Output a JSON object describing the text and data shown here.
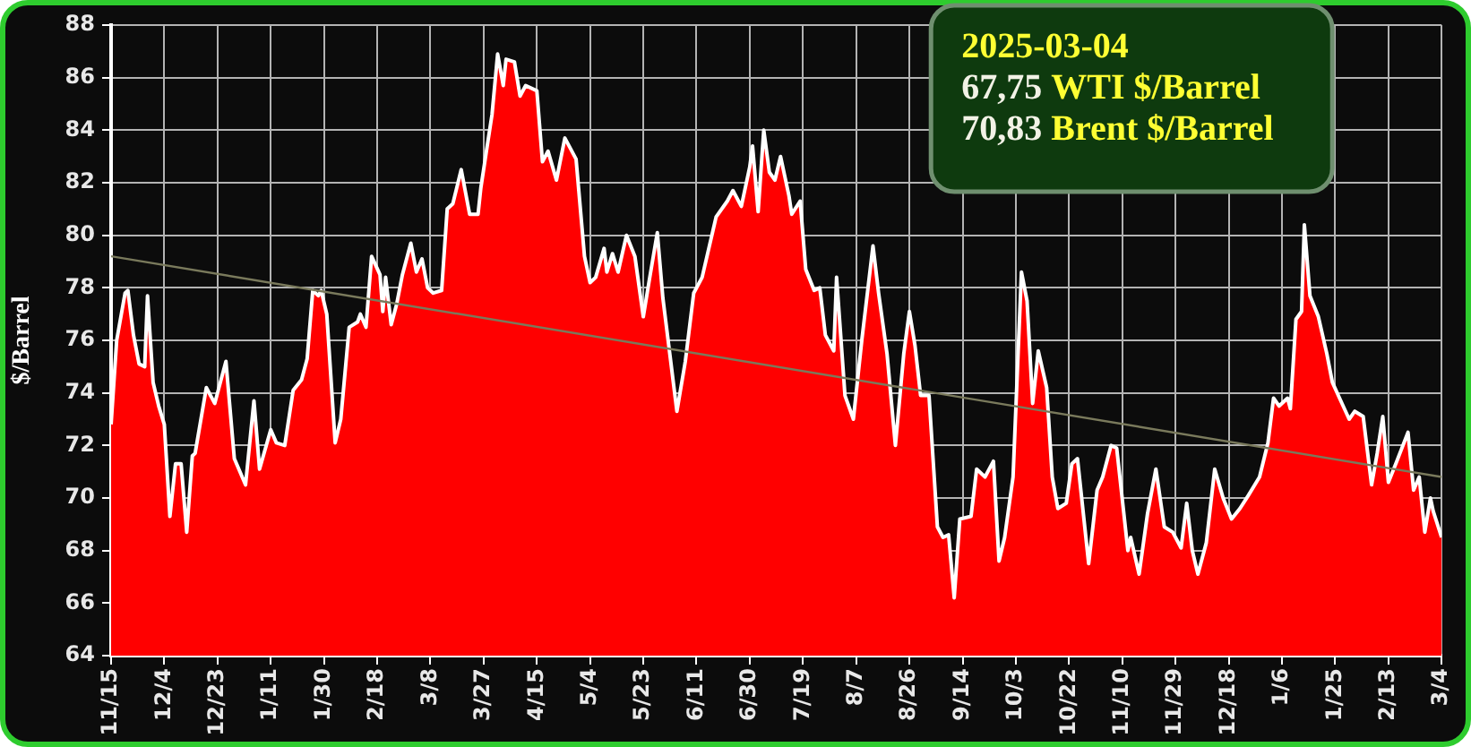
{
  "chart_data": {
    "type": "area",
    "ylabel": "$/Barrel",
    "annotations": [
      "2025-03-04",
      "67,75 WTI $/Barrel",
      "70,83 Brent $/Barrel"
    ],
    "x": [
      "2023-11-15",
      "2023-11-17",
      "2023-11-20",
      "2023-11-21",
      "2023-11-23",
      "2023-11-25",
      "2023-11-27",
      "2023-11-28",
      "2023-11-30",
      "2023-12-02",
      "2023-12-04",
      "2023-12-06",
      "2023-12-08",
      "2023-12-10",
      "2023-12-12",
      "2023-12-14",
      "2023-12-15",
      "2023-12-19",
      "2023-12-22",
      "2023-12-26",
      "2023-12-29",
      "2024-01-02",
      "2024-01-05",
      "2024-01-07",
      "2024-01-11",
      "2024-01-13",
      "2024-01-16",
      "2024-01-19",
      "2024-01-22",
      "2024-01-24",
      "2024-01-26",
      "2024-01-28",
      "2024-01-29",
      "2024-01-31",
      "2024-02-03",
      "2024-02-05",
      "2024-02-08",
      "2024-02-11",
      "2024-02-12",
      "2024-02-14",
      "2024-02-16",
      "2024-02-19",
      "2024-02-20",
      "2024-02-21",
      "2024-02-23",
      "2024-02-25",
      "2024-02-27",
      "2024-03-01",
      "2024-03-03",
      "2024-03-05",
      "2024-03-07",
      "2024-03-09",
      "2024-03-12",
      "2024-03-14",
      "2024-03-16",
      "2024-03-19",
      "2024-03-22",
      "2024-03-25",
      "2024-03-26",
      "2024-03-28",
      "2024-03-30",
      "2024-04-01",
      "2024-04-03",
      "2024-04-04",
      "2024-04-07",
      "2024-04-09",
      "2024-04-11",
      "2024-04-15",
      "2024-04-17",
      "2024-04-19",
      "2024-04-22",
      "2024-04-25",
      "2024-04-29",
      "2024-05-02",
      "2024-05-04",
      "2024-05-06",
      "2024-05-09",
      "2024-05-10",
      "2024-05-12",
      "2024-05-14",
      "2024-05-17",
      "2024-05-20",
      "2024-05-23",
      "2024-05-25",
      "2024-05-28",
      "2024-05-30",
      "2024-06-04",
      "2024-06-07",
      "2024-06-10",
      "2024-06-13",
      "2024-06-18",
      "2024-06-22",
      "2024-06-24",
      "2024-06-27",
      "2024-06-30",
      "2024-07-01",
      "2024-07-03",
      "2024-07-05",
      "2024-07-07",
      "2024-07-09",
      "2024-07-11",
      "2024-07-14",
      "2024-07-15",
      "2024-07-18",
      "2024-07-20",
      "2024-07-23",
      "2024-07-25",
      "2024-07-27",
      "2024-07-30",
      "2024-07-31",
      "2024-08-03",
      "2024-08-06",
      "2024-08-09",
      "2024-08-13",
      "2024-08-15",
      "2024-08-18",
      "2024-08-21",
      "2024-08-24",
      "2024-08-26",
      "2024-08-28",
      "2024-08-30",
      "2024-09-02",
      "2024-09-05",
      "2024-09-07",
      "2024-09-09",
      "2024-09-11",
      "2024-09-13",
      "2024-09-17",
      "2024-09-19",
      "2024-09-22",
      "2024-09-25",
      "2024-09-27",
      "2024-09-29",
      "2024-10-02",
      "2024-10-05",
      "2024-10-07",
      "2024-10-09",
      "2024-10-11",
      "2024-10-14",
      "2024-10-16",
      "2024-10-18",
      "2024-10-21",
      "2024-10-23",
      "2024-10-25",
      "2024-10-29",
      "2024-11-01",
      "2024-11-03",
      "2024-11-06",
      "2024-11-08",
      "2024-11-12",
      "2024-11-13",
      "2024-11-16",
      "2024-11-19",
      "2024-11-22",
      "2024-11-25",
      "2024-11-28",
      "2024-12-01",
      "2024-12-03",
      "2024-12-05",
      "2024-12-07",
      "2024-12-10",
      "2024-12-13",
      "2024-12-16",
      "2024-12-19",
      "2024-12-22",
      "2024-12-25",
      "2024-12-29",
      "2025-01-01",
      "2025-01-03",
      "2025-01-05",
      "2025-01-08",
      "2025-01-09",
      "2025-01-11",
      "2025-01-13",
      "2025-01-14",
      "2025-01-16",
      "2025-01-19",
      "2025-01-22",
      "2025-01-24",
      "2025-01-27",
      "2025-01-30",
      "2025-02-01",
      "2025-02-04",
      "2025-02-07",
      "2025-02-09",
      "2025-02-11",
      "2025-02-13",
      "2025-02-16",
      "2025-02-20",
      "2025-02-22",
      "2025-02-24",
      "2025-02-26",
      "2025-02-28",
      "2025-03-01",
      "2025-03-04"
    ],
    "series": [
      {
        "color": "#ff0000",
        "values": [
          72.8,
          76.0,
          77.8,
          77.9,
          76.2,
          75.1,
          75.0,
          77.7,
          74.4,
          73.5,
          72.8,
          69.3,
          71.3,
          71.3,
          68.7,
          71.6,
          71.7,
          74.2,
          73.6,
          75.2,
          71.5,
          70.5,
          73.7,
          71.1,
          72.6,
          72.1,
          72.0,
          74.1,
          74.5,
          75.3,
          77.9,
          77.7,
          77.9,
          77.0,
          72.1,
          73.0,
          76.5,
          76.7,
          77.0,
          76.5,
          79.2,
          78.5,
          77.1,
          78.4,
          76.6,
          77.4,
          78.5,
          79.7,
          78.6,
          79.1,
          78.0,
          77.8,
          77.9,
          81.0,
          81.2,
          82.5,
          80.8,
          80.8,
          81.8,
          83.2,
          84.6,
          86.9,
          85.7,
          86.7,
          86.6,
          85.3,
          85.7,
          85.5,
          82.8,
          83.2,
          82.1,
          83.7,
          82.9,
          79.2,
          78.2,
          78.4,
          79.5,
          78.6,
          79.3,
          78.6,
          80.0,
          79.2,
          76.9,
          78.2,
          80.1,
          77.6,
          73.3,
          75.2,
          77.8,
          78.4,
          80.7,
          81.3,
          81.7,
          81.1,
          82.6,
          83.4,
          80.9,
          84.0,
          82.4,
          82.1,
          83.0,
          81.5,
          80.8,
          81.3,
          78.7,
          77.9,
          78.0,
          76.2,
          75.6,
          78.4,
          73.9,
          73.0,
          76.0,
          79.6,
          77.8,
          75.5,
          72.0,
          75.5,
          77.1,
          75.8,
          73.9,
          73.9,
          68.9,
          68.5,
          68.6,
          66.2,
          69.2,
          69.3,
          71.1,
          70.8,
          71.4,
          67.6,
          68.5,
          70.8,
          78.6,
          77.5,
          73.6,
          75.6,
          74.2,
          70.8,
          69.6,
          69.8,
          71.3,
          71.5,
          67.5,
          70.3,
          70.8,
          72.0,
          71.9,
          68.0,
          68.5,
          67.1,
          69.4,
          71.1,
          68.9,
          68.7,
          68.1,
          69.8,
          68.0,
          67.1,
          68.3,
          71.1,
          70.0,
          69.2,
          69.6,
          70.1,
          70.8,
          72.1,
          73.8,
          73.5,
          73.8,
          73.4,
          76.8,
          77.1,
          80.4,
          77.7,
          76.9,
          75.5,
          74.4,
          73.7,
          73.0,
          73.3,
          73.1,
          70.5,
          71.7,
          73.1,
          70.6,
          71.4,
          72.5,
          70.3,
          70.8,
          68.7,
          70.0,
          69.5,
          68.5
        ]
      },
      {
        "type": "line",
        "color": "#7a7a5c",
        "x": [
          "2023-11-15",
          "2025-03-04"
        ],
        "values": [
          79.2,
          70.8
        ]
      }
    ],
    "xlim": [
      "2023-11-15",
      "2025-03-04"
    ],
    "xticks": [
      {
        "value": "2023-11-15",
        "label": "11/15"
      },
      {
        "value": "2023-12-04",
        "label": "12/4"
      },
      {
        "value": "2023-12-23",
        "label": "12/23"
      },
      {
        "value": "2024-01-11",
        "label": "1/11"
      },
      {
        "value": "2024-01-30",
        "label": "1/30"
      },
      {
        "value": "2024-02-18",
        "label": "2/18"
      },
      {
        "value": "2024-03-08",
        "label": "3/8"
      },
      {
        "value": "2024-03-27",
        "label": "3/27"
      },
      {
        "value": "2024-04-15",
        "label": "4/15"
      },
      {
        "value": "2024-05-04",
        "label": "5/4"
      },
      {
        "value": "2024-05-23",
        "label": "5/23"
      },
      {
        "value": "2024-06-11",
        "label": "6/11"
      },
      {
        "value": "2024-06-30",
        "label": "6/30"
      },
      {
        "value": "2024-07-19",
        "label": "7/19"
      },
      {
        "value": "2024-08-07",
        "label": "8/7"
      },
      {
        "value": "2024-08-26",
        "label": "8/26"
      },
      {
        "value": "2024-09-14",
        "label": "9/14"
      },
      {
        "value": "2024-10-03",
        "label": "10/3"
      },
      {
        "value": "2024-10-22",
        "label": "10/22"
      },
      {
        "value": "2024-11-10",
        "label": "11/10"
      },
      {
        "value": "2024-11-29",
        "label": "11/29"
      },
      {
        "value": "2024-12-18",
        "label": "12/18"
      },
      {
        "value": "2025-01-06",
        "label": "1/6"
      },
      {
        "value": "2025-01-25",
        "label": "1/25"
      },
      {
        "value": "2025-02-13",
        "label": "2/13"
      },
      {
        "value": "2025-03-04",
        "label": "3/4"
      }
    ],
    "ylim": [
      64,
      88
    ],
    "yticks": [
      64,
      66,
      68,
      70,
      72,
      74,
      76,
      78,
      80,
      82,
      84,
      86,
      88
    ],
    "grid": true,
    "legend": false,
    "marker": "none"
  }
}
